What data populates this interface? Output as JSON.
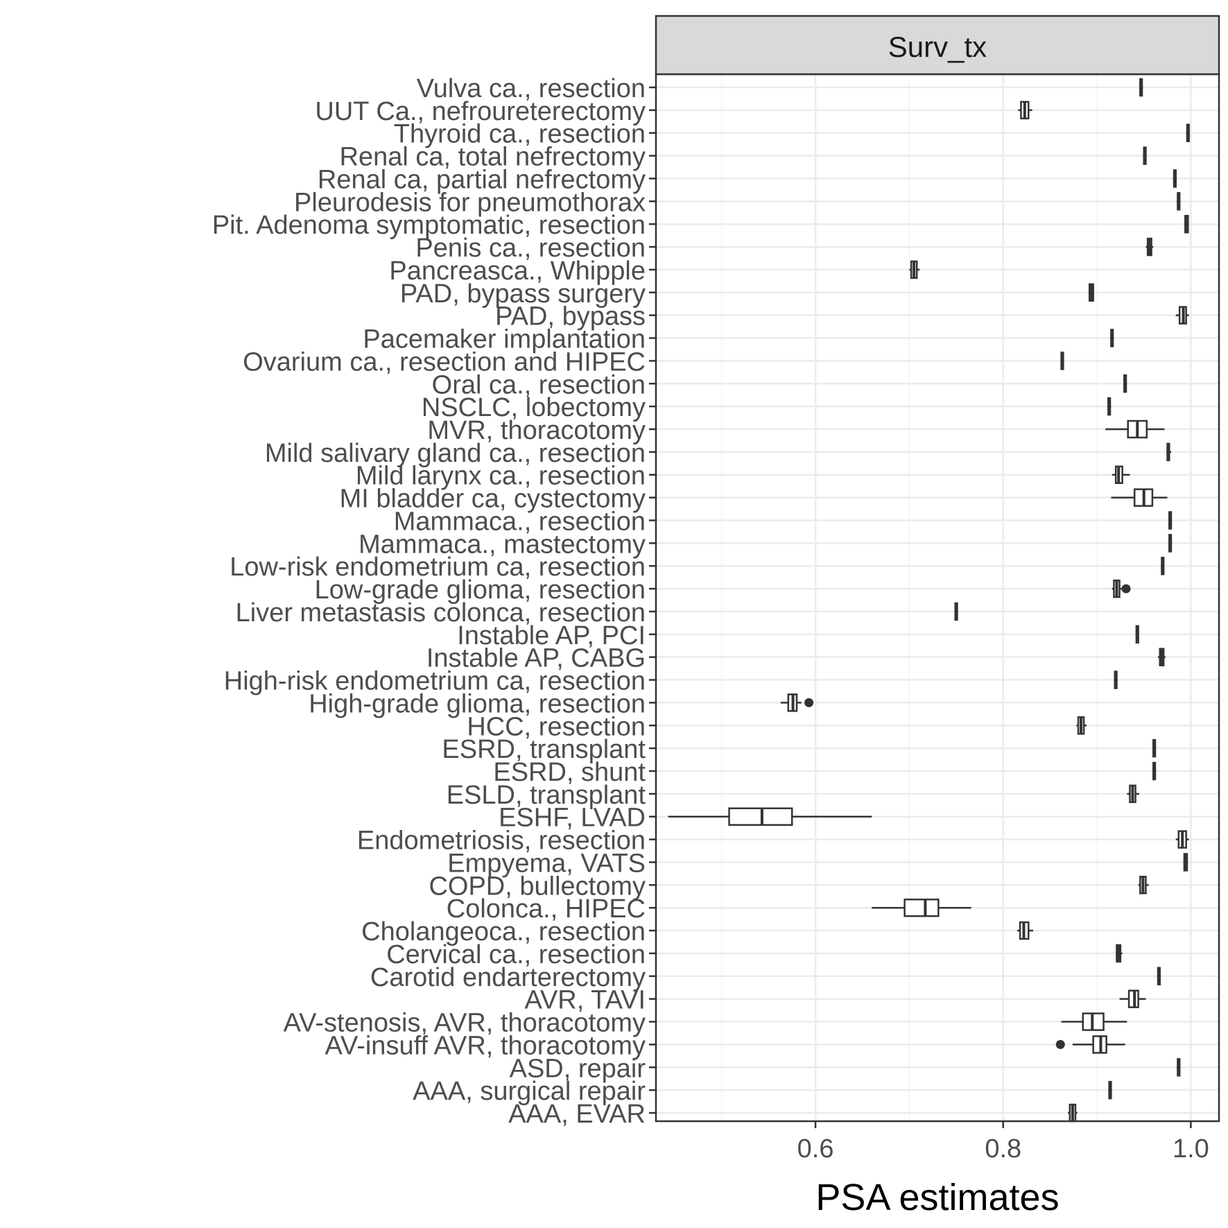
{
  "chart_data": {
    "type": "boxplot",
    "orientation": "horizontal",
    "facet_label": "Surv_tx",
    "xlabel": "PSA estimates",
    "ylabel": "",
    "xlim": [
      0.43,
      1.03
    ],
    "x_ticks": [
      {
        "value": 0.6,
        "label": "0.6"
      },
      {
        "value": 0.8,
        "label": "0.8"
      },
      {
        "value": 1.0,
        "label": "1.0"
      }
    ],
    "grid": true,
    "colors": {
      "strip_fill": "#d9d9d9",
      "grid_major": "#ebebeb",
      "grid_minor": "#f4f4f4",
      "box_stroke": "#333333",
      "panel_border": "#333333",
      "label_text": "#4d4d4d"
    },
    "categories": [
      {
        "label": "Vulva ca., resection",
        "min": 0.945,
        "q1": 0.946,
        "median": 0.947,
        "q3": 0.948,
        "max": 0.949,
        "outliers": []
      },
      {
        "label": "UUT Ca., nefroureterectomy",
        "min": 0.816,
        "q1": 0.819,
        "median": 0.823,
        "q3": 0.827,
        "max": 0.831,
        "outliers": []
      },
      {
        "label": "Thyroid ca., resection",
        "min": 0.995,
        "q1": 0.996,
        "median": 0.997,
        "q3": 0.998,
        "max": 0.999,
        "outliers": []
      },
      {
        "label": "Renal ca, total nefrectomy",
        "min": 0.949,
        "q1": 0.95,
        "median": 0.951,
        "q3": 0.952,
        "max": 0.953,
        "outliers": []
      },
      {
        "label": "Renal ca, partial nefrectomy",
        "min": 0.981,
        "q1": 0.982,
        "median": 0.983,
        "q3": 0.984,
        "max": 0.985,
        "outliers": []
      },
      {
        "label": "Pleurodesis for pneumothorax",
        "min": 0.985,
        "q1": 0.986,
        "median": 0.987,
        "q3": 0.988,
        "max": 0.989,
        "outliers": []
      },
      {
        "label": "Pit. Adenoma symptomatic, resection",
        "min": 0.993,
        "q1": 0.994,
        "median": 0.995,
        "q3": 0.997,
        "max": 0.998,
        "outliers": []
      },
      {
        "label": "Penis ca., resection",
        "min": 0.952,
        "q1": 0.954,
        "median": 0.956,
        "q3": 0.958,
        "max": 0.96,
        "outliers": []
      },
      {
        "label": "Pancreasca., Whipple",
        "min": 0.7,
        "q1": 0.702,
        "median": 0.705,
        "q3": 0.708,
        "max": 0.711,
        "outliers": []
      },
      {
        "label": "PAD, bypass surgery",
        "min": 0.891,
        "q1": 0.892,
        "median": 0.894,
        "q3": 0.896,
        "max": 0.897,
        "outliers": []
      },
      {
        "label": "PAD, bypass",
        "min": 0.984,
        "q1": 0.988,
        "median": 0.992,
        "q3": 0.995,
        "max": 0.998,
        "outliers": []
      },
      {
        "label": "Pacemaker implantation",
        "min": 0.914,
        "q1": 0.915,
        "median": 0.916,
        "q3": 0.917,
        "max": 0.918,
        "outliers": []
      },
      {
        "label": "Ovarium ca., resection and HIPEC",
        "min": 0.861,
        "q1": 0.862,
        "median": 0.863,
        "q3": 0.864,
        "max": 0.865,
        "outliers": []
      },
      {
        "label": "Oral ca., resection",
        "min": 0.928,
        "q1": 0.929,
        "median": 0.93,
        "q3": 0.931,
        "max": 0.932,
        "outliers": []
      },
      {
        "label": "NSCLC, lobectomy",
        "min": 0.911,
        "q1": 0.912,
        "median": 0.913,
        "q3": 0.914,
        "max": 0.915,
        "outliers": []
      },
      {
        "label": "MVR, thoracotomy",
        "min": 0.909,
        "q1": 0.933,
        "median": 0.943,
        "q3": 0.953,
        "max": 0.972,
        "outliers": []
      },
      {
        "label": "Mild salivary gland ca., resection",
        "min": 0.974,
        "q1": 0.975,
        "median": 0.976,
        "q3": 0.977,
        "max": 0.979,
        "outliers": []
      },
      {
        "label": "Mild larynx ca., resection",
        "min": 0.916,
        "q1": 0.92,
        "median": 0.923,
        "q3": 0.927,
        "max": 0.935,
        "outliers": []
      },
      {
        "label": "MI bladder ca, cystectomy",
        "min": 0.915,
        "q1": 0.94,
        "median": 0.95,
        "q3": 0.959,
        "max": 0.975,
        "outliers": []
      },
      {
        "label": "Mammaca., resection",
        "min": 0.976,
        "q1": 0.977,
        "median": 0.978,
        "q3": 0.979,
        "max": 0.98,
        "outliers": []
      },
      {
        "label": "Mammaca., mastectomy",
        "min": 0.976,
        "q1": 0.977,
        "median": 0.978,
        "q3": 0.979,
        "max": 0.98,
        "outliers": []
      },
      {
        "label": "Low-risk endometrium ca, resection",
        "min": 0.968,
        "q1": 0.969,
        "median": 0.97,
        "q3": 0.971,
        "max": 0.972,
        "outliers": []
      },
      {
        "label": "Low-grade glioma, resection",
        "min": 0.916,
        "q1": 0.918,
        "median": 0.921,
        "q3": 0.924,
        "max": 0.927,
        "outliers": [
          0.931
        ]
      },
      {
        "label": "Liver metastasis colonca, resection",
        "min": 0.748,
        "q1": 0.749,
        "median": 0.75,
        "q3": 0.751,
        "max": 0.752,
        "outliers": []
      },
      {
        "label": "Instable AP, PCI",
        "min": 0.941,
        "q1": 0.942,
        "median": 0.943,
        "q3": 0.944,
        "max": 0.945,
        "outliers": []
      },
      {
        "label": "Instable AP, CABG",
        "min": 0.965,
        "q1": 0.967,
        "median": 0.969,
        "q3": 0.971,
        "max": 0.973,
        "outliers": []
      },
      {
        "label": "High-risk endometrium ca, resection",
        "min": 0.918,
        "q1": 0.919,
        "median": 0.92,
        "q3": 0.921,
        "max": 0.922,
        "outliers": []
      },
      {
        "label": "High-grade glioma, resection",
        "min": 0.563,
        "q1": 0.571,
        "median": 0.576,
        "q3": 0.58,
        "max": 0.585,
        "outliers": [
          0.593
        ]
      },
      {
        "label": "HCC, resection",
        "min": 0.878,
        "q1": 0.88,
        "median": 0.883,
        "q3": 0.886,
        "max": 0.889,
        "outliers": []
      },
      {
        "label": "ESRD, transplant",
        "min": 0.959,
        "q1": 0.96,
        "median": 0.961,
        "q3": 0.962,
        "max": 0.963,
        "outliers": []
      },
      {
        "label": "ESRD, shunt",
        "min": 0.959,
        "q1": 0.96,
        "median": 0.961,
        "q3": 0.962,
        "max": 0.963,
        "outliers": []
      },
      {
        "label": "ESLD, transplant",
        "min": 0.932,
        "q1": 0.935,
        "median": 0.938,
        "q3": 0.941,
        "max": 0.945,
        "outliers": []
      },
      {
        "label": "ESHF, LVAD",
        "min": 0.443,
        "q1": 0.508,
        "median": 0.543,
        "q3": 0.575,
        "max": 0.66,
        "outliers": []
      },
      {
        "label": "Endometriosis, resection",
        "min": 0.984,
        "q1": 0.987,
        "median": 0.991,
        "q3": 0.995,
        "max": 0.998,
        "outliers": []
      },
      {
        "label": "Empyema, VATS",
        "min": 0.992,
        "q1": 0.993,
        "median": 0.994,
        "q3": 0.996,
        "max": 0.997,
        "outliers": []
      },
      {
        "label": "COPD, bullectomy",
        "min": 0.944,
        "q1": 0.946,
        "median": 0.949,
        "q3": 0.952,
        "max": 0.955,
        "outliers": []
      },
      {
        "label": "Colonca., HIPEC",
        "min": 0.66,
        "q1": 0.695,
        "median": 0.717,
        "q3": 0.731,
        "max": 0.766,
        "outliers": []
      },
      {
        "label": "Cholangeoca., resection",
        "min": 0.815,
        "q1": 0.818,
        "median": 0.822,
        "q3": 0.827,
        "max": 0.832,
        "outliers": []
      },
      {
        "label": "Cervical ca., resection",
        "min": 0.92,
        "q1": 0.921,
        "median": 0.923,
        "q3": 0.925,
        "max": 0.927,
        "outliers": []
      },
      {
        "label": "Carotid endarterectomy",
        "min": 0.964,
        "q1": 0.965,
        "median": 0.966,
        "q3": 0.967,
        "max": 0.968,
        "outliers": []
      },
      {
        "label": "AVR, TAVI",
        "min": 0.924,
        "q1": 0.934,
        "median": 0.94,
        "q3": 0.944,
        "max": 0.952,
        "outliers": []
      },
      {
        "label": "AV-stenosis, AVR, thoracotomy",
        "min": 0.862,
        "q1": 0.885,
        "median": 0.895,
        "q3": 0.907,
        "max": 0.932,
        "outliers": []
      },
      {
        "label": "AV-insuff AVR, thoracotomy",
        "min": 0.874,
        "q1": 0.896,
        "median": 0.904,
        "q3": 0.91,
        "max": 0.93,
        "outliers": [
          0.861
        ]
      },
      {
        "label": "ASD, repair",
        "min": 0.985,
        "q1": 0.986,
        "median": 0.987,
        "q3": 0.988,
        "max": 0.989,
        "outliers": []
      },
      {
        "label": "AAA, surgical repair",
        "min": 0.912,
        "q1": 0.913,
        "median": 0.914,
        "q3": 0.915,
        "max": 0.916,
        "outliers": []
      },
      {
        "label": "AAA, EVAR",
        "min": 0.869,
        "q1": 0.871,
        "median": 0.874,
        "q3": 0.877,
        "max": 0.879,
        "outliers": []
      }
    ]
  }
}
